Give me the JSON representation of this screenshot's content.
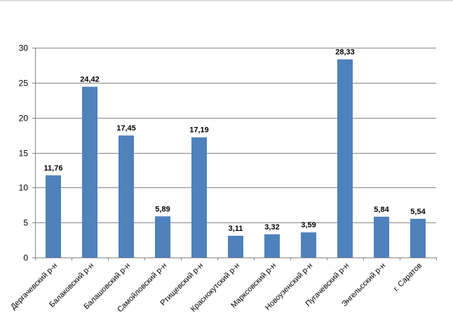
{
  "chart_data": {
    "type": "bar",
    "title": "",
    "xlabel": "",
    "ylabel": "",
    "ylim": [
      0,
      30
    ],
    "yticks": [
      "0",
      "5",
      "10",
      "15",
      "20",
      "25",
      "30"
    ],
    "grid": true,
    "legend": "none",
    "bar_color": "#4F81BD",
    "categories": [
      "Дергачевский р-н",
      "Балаковский р-н",
      "Балашовский р-н",
      "Самойловский р-н",
      "Ртищевский р-н",
      "Краснокутский р-н",
      "Марксовский р-н",
      "Новоузенский р-н",
      "Пугачевский р-н",
      "Энгельсский р-н",
      "г. Саратов"
    ],
    "values": [
      11.76,
      24.42,
      17.45,
      5.89,
      17.19,
      3.11,
      3.32,
      3.59,
      28.33,
      5.84,
      5.54
    ],
    "data_labels": [
      "11,76",
      "24,42",
      "17,45",
      "5,89",
      "17,19",
      "3,11",
      "3,32",
      "3,59",
      "28,33",
      "5,84",
      "5,54"
    ]
  }
}
